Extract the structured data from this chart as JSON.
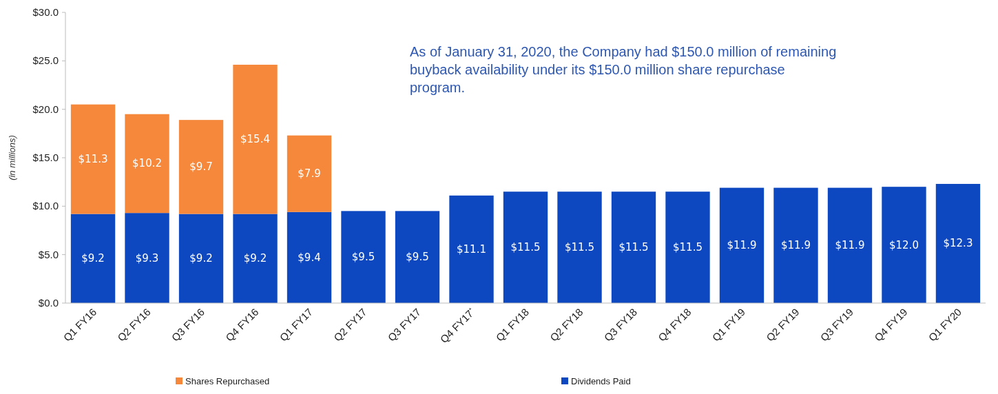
{
  "chart_data": {
    "type": "bar",
    "stacked": true,
    "ylabel": "(in millions)",
    "categories": [
      "Q1 FY16",
      "Q2 FY16",
      "Q3 FY16",
      "Q4 FY16",
      "Q1 FY17",
      "Q2 FY17",
      "Q3 FY17",
      "Q4 FY17$^{*}$",
      "Q1 FY18",
      "Q2 FY18",
      "Q3 FY18",
      "Q4 FY18",
      "Q1 FY19",
      "Q2 FY19",
      "Q3 FY19",
      "Q4 FY19",
      "Q1 FY20"
    ],
    "series": [
      {
        "name": "Dividends Paid",
        "color": "#0d48c0",
        "values": [
          9.2,
          9.3,
          9.2,
          9.2,
          9.4,
          9.5,
          9.5,
          11.1,
          11.5,
          11.5,
          11.5,
          11.5,
          11.9,
          11.9,
          11.9,
          12.0,
          12.3
        ],
        "value_labels": [
          "$9.2",
          "$9.3",
          "$9.2",
          "$9.2",
          "$9.4",
          "$9.5",
          "$9.5",
          "$11.1",
          "$11.5",
          "$11.5",
          "$11.5",
          "$11.5",
          "$11.9",
          "$11.9",
          "$11.9",
          "$12.0",
          "$12.3"
        ]
      },
      {
        "name": "Shares Repurchased",
        "color": "#f5883a",
        "values": [
          11.3,
          10.2,
          9.7,
          15.4,
          7.9,
          null,
          null,
          null,
          null,
          null,
          null,
          null,
          null,
          null,
          null,
          null,
          null
        ],
        "value_labels": [
          "$11.3",
          "$10.2",
          "$9.7",
          "$15.4",
          "$7.9",
          null,
          null,
          null,
          null,
          null,
          null,
          null,
          null,
          null,
          null,
          null,
          null
        ]
      }
    ],
    "ylim": [
      0,
      30
    ],
    "yticks": [
      {
        "value": 0,
        "label": "$0.0"
      },
      {
        "value": 5,
        "label": "$5.0"
      },
      {
        "value": 10,
        "label": "$10.0"
      },
      {
        "value": 15,
        "label": "$15.0"
      },
      {
        "value": 20,
        "label": "$20.0"
      },
      {
        "value": 25,
        "label": "$25.0"
      },
      {
        "value": 30,
        "label": "$30.0"
      }
    ],
    "grid": false,
    "legend": "bottom",
    "annotations": [
      "As of January 31, 2020, the Company had $150.0 million of remaining buyback availability under its $150.0 million share repurchase program."
    ]
  }
}
